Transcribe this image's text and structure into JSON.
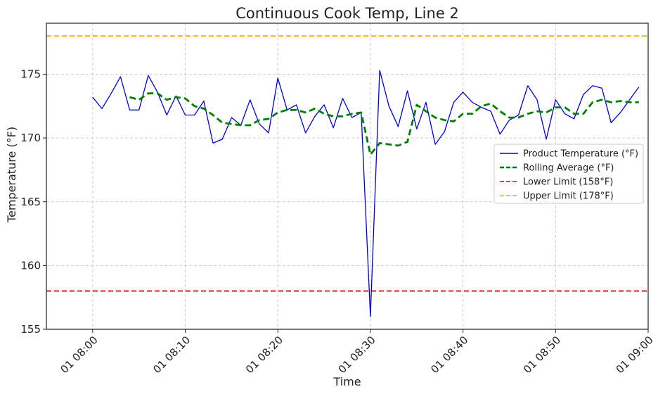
{
  "chart_data": {
    "type": "line",
    "title": "Continuous Cook Temp, Line 2",
    "xlabel": "Time",
    "ylabel": "Temperature (°F)",
    "x_unit": "minutes after 08:00",
    "xlim": [
      -5,
      60
    ],
    "ylim": [
      155,
      179
    ],
    "x_ticks": [
      {
        "value": 0,
        "label": "01 08:00"
      },
      {
        "value": 10,
        "label": "01 08:10"
      },
      {
        "value": 20,
        "label": "01 08:20"
      },
      {
        "value": 30,
        "label": "01 08:30"
      },
      {
        "value": 40,
        "label": "01 08:40"
      },
      {
        "value": 50,
        "label": "01 08:50"
      },
      {
        "value": 60,
        "label": "01 09:00"
      }
    ],
    "y_ticks": [
      155,
      160,
      165,
      170,
      175
    ],
    "grid": true,
    "legend_position": "center-right",
    "series": [
      {
        "name": "Product Temperature (°F)",
        "color": "#0000dd",
        "style": "solid",
        "x": [
          0,
          1,
          2,
          3,
          4,
          5,
          6,
          7,
          8,
          9,
          10,
          11,
          12,
          13,
          14,
          15,
          16,
          17,
          18,
          19,
          20,
          21,
          22,
          23,
          24,
          25,
          26,
          27,
          28,
          29,
          30,
          31,
          32,
          33,
          34,
          35,
          36,
          37,
          38,
          39,
          40,
          41,
          42,
          43,
          44,
          45,
          46,
          47,
          48,
          49,
          50,
          51,
          52,
          53,
          54,
          55,
          56,
          57,
          58,
          59
        ],
        "y": [
          173.2,
          172.3,
          173.5,
          174.8,
          172.2,
          172.2,
          174.9,
          173.6,
          171.8,
          173.3,
          171.8,
          171.8,
          172.9,
          169.6,
          169.9,
          171.6,
          171.0,
          173.0,
          171.1,
          170.4,
          174.7,
          172.2,
          172.6,
          170.4,
          171.7,
          172.6,
          170.8,
          173.1,
          171.6,
          172.0,
          156.0,
          175.3,
          172.5,
          170.9,
          173.7,
          170.7,
          172.8,
          169.5,
          170.5,
          172.8,
          173.6,
          172.8,
          172.4,
          172.1,
          170.3,
          171.4,
          171.8,
          174.1,
          173.0,
          169.9,
          173.0,
          171.9,
          171.5,
          173.4,
          174.1,
          173.9,
          171.2,
          172.0,
          173.0,
          174.0
        ]
      },
      {
        "name": "Rolling Average (°F)",
        "color": "#008000",
        "style": "dashed",
        "x": [
          4,
          5,
          6,
          7,
          8,
          9,
          10,
          11,
          12,
          13,
          14,
          15,
          16,
          17,
          18,
          19,
          20,
          21,
          22,
          23,
          24,
          25,
          26,
          27,
          28,
          29,
          30,
          31,
          32,
          33,
          34,
          35,
          36,
          37,
          38,
          39,
          40,
          41,
          42,
          43,
          44,
          45,
          46,
          47,
          48,
          49,
          50,
          51,
          52,
          53,
          54,
          55,
          56,
          57,
          58,
          59
        ],
        "y": [
          173.2,
          173.0,
          173.5,
          173.5,
          173.0,
          173.2,
          173.1,
          172.5,
          172.3,
          171.8,
          171.2,
          171.1,
          171.0,
          171.0,
          171.4,
          171.5,
          172.0,
          172.2,
          172.2,
          172.0,
          172.3,
          171.9,
          171.7,
          171.7,
          171.9,
          172.0,
          168.7,
          169.6,
          169.5,
          169.4,
          169.7,
          172.6,
          172.1,
          171.6,
          171.4,
          171.3,
          171.9,
          171.9,
          172.5,
          172.7,
          172.1,
          171.6,
          171.6,
          171.9,
          172.1,
          172.0,
          172.4,
          172.4,
          171.9,
          171.9,
          172.8,
          173.0,
          172.8,
          172.9,
          172.8,
          172.8
        ]
      },
      {
        "name": "Lower Limit (158°F)",
        "color": "#dd0000",
        "style": "dashed",
        "value": 158
      },
      {
        "name": "Upper Limit (178°F)",
        "color": "#ffa500",
        "style": "dashed",
        "value": 178
      }
    ]
  }
}
